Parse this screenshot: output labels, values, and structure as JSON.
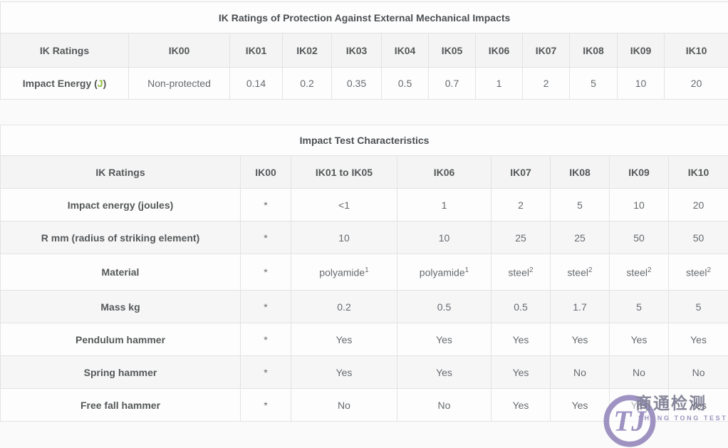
{
  "colors": {
    "joule_unit_green": "#8fbe3e",
    "watermark_purple": "#8e81b8",
    "watermark_gray": "#73738a",
    "header_band": "#f4f4f4",
    "border": "#e3e3e3"
  },
  "table1": {
    "title": "IK Ratings of Protection Against External Mechanical Impacts",
    "headers": [
      "IK Ratings",
      "IK00",
      "IK01",
      "IK02",
      "IK03",
      "IK04",
      "IK05",
      "IK06",
      "IK07",
      "IK08",
      "IK09",
      "IK10"
    ],
    "row": {
      "label_prefix": "Impact Energy (",
      "label_unit": "J",
      "label_suffix": ")",
      "values": [
        "Non-protected",
        "0.14",
        "0.2",
        "0.35",
        "0.5",
        "0.7",
        "1",
        "2",
        "5",
        "10",
        "20"
      ]
    }
  },
  "table2": {
    "title": "Impact Test Characteristics",
    "headers": [
      "IK Ratings",
      "IK00",
      "IK01 to IK05",
      "IK06",
      "IK07",
      "IK08",
      "IK09",
      "IK10"
    ],
    "rows": [
      {
        "label": "Impact energy (joules)",
        "values": [
          "*",
          "<1",
          "1",
          "2",
          "5",
          "10",
          "20"
        ]
      },
      {
        "label": "R mm (radius of striking element)",
        "values": [
          "*",
          "10",
          "10",
          "25",
          "25",
          "50",
          "50"
        ]
      },
      {
        "label": "Material",
        "values": [
          "*",
          "polyamide^1",
          "polyamide^1",
          "steel^2",
          "steel^2",
          "steel^2",
          "steel^2"
        ]
      },
      {
        "label": "Mass kg",
        "values": [
          "*",
          "0.2",
          "0.5",
          "0.5",
          "1.7",
          "5",
          "5"
        ]
      },
      {
        "label": "Pendulum hammer",
        "values": [
          "*",
          "Yes",
          "Yes",
          "Yes",
          "Yes",
          "Yes",
          "Yes"
        ]
      },
      {
        "label": "Spring hammer",
        "values": [
          "*",
          "Yes",
          "Yes",
          "Yes",
          "No",
          "No",
          "No"
        ]
      },
      {
        "label": "Free fall hammer",
        "values": [
          "*",
          "No",
          "No",
          "Yes",
          "Yes",
          "Yes",
          "Yes"
        ]
      }
    ]
  },
  "watermark": {
    "monogram": "TJ",
    "cn_text": "商通检测",
    "en_text": "SHANG TONG TESTING"
  }
}
